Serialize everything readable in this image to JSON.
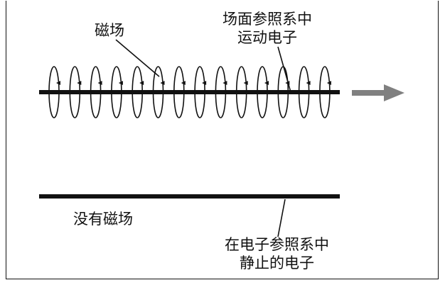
{
  "labels": {
    "magnetic_field": "磁场",
    "moving_frame_line1": "场面参照系中",
    "moving_frame_line2": "运动电子",
    "no_field": "没有磁场",
    "rest_frame_line1": "在电子参照系中",
    "rest_frame_line2": "静止的电子"
  },
  "colors": {
    "ink": "#111111",
    "arrow": "#808080"
  },
  "diagram": {
    "field_loop_count": 14,
    "motion_arrow_direction": "right"
  }
}
